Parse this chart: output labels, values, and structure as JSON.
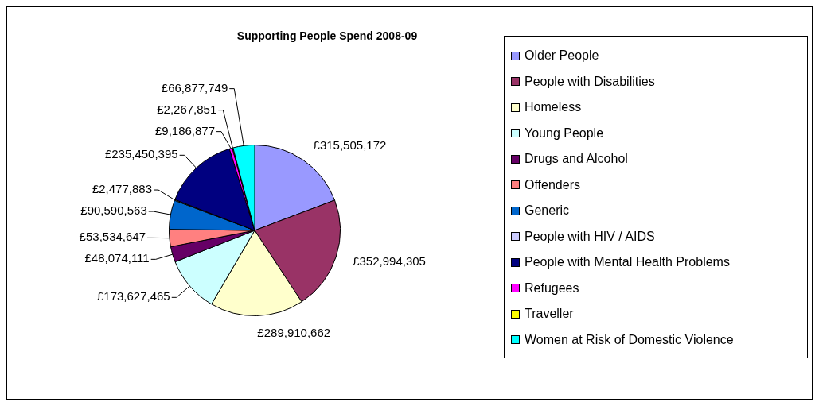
{
  "chart_data": {
    "type": "pie",
    "title": "Supporting People Spend 2008-09",
    "categories": [
      "Older People",
      "People with Disabilities",
      "Homeless",
      "Young People",
      "Drugs and Alcohol",
      "Offenders",
      "Generic",
      "People with HIV / AIDS",
      "People with Mental Health Problems",
      "Refugees",
      "Traveller",
      "Women at Risk of Domestic Violence"
    ],
    "values": [
      315505172,
      352994305,
      289910662,
      173627465,
      48074111,
      53534647,
      90590563,
      2477883,
      235450395,
      9186877,
      2267851,
      66877749
    ],
    "value_labels": [
      "£315,505,172",
      "£352,994,305",
      "£289,910,662",
      "£173,627,465",
      "£48,074,111",
      "£53,534,647",
      "£90,590,563",
      "£2,477,883",
      "£235,450,395",
      "£9,186,877",
      "£2,267,851",
      "£66,877,749"
    ],
    "colors": [
      "#9999ff",
      "#993366",
      "#ffffcc",
      "#ccffff",
      "#660066",
      "#ff8080",
      "#0066cc",
      "#ccccff",
      "#000080",
      "#ff00ff",
      "#ffff00",
      "#00ffff"
    ],
    "legend": "right"
  }
}
